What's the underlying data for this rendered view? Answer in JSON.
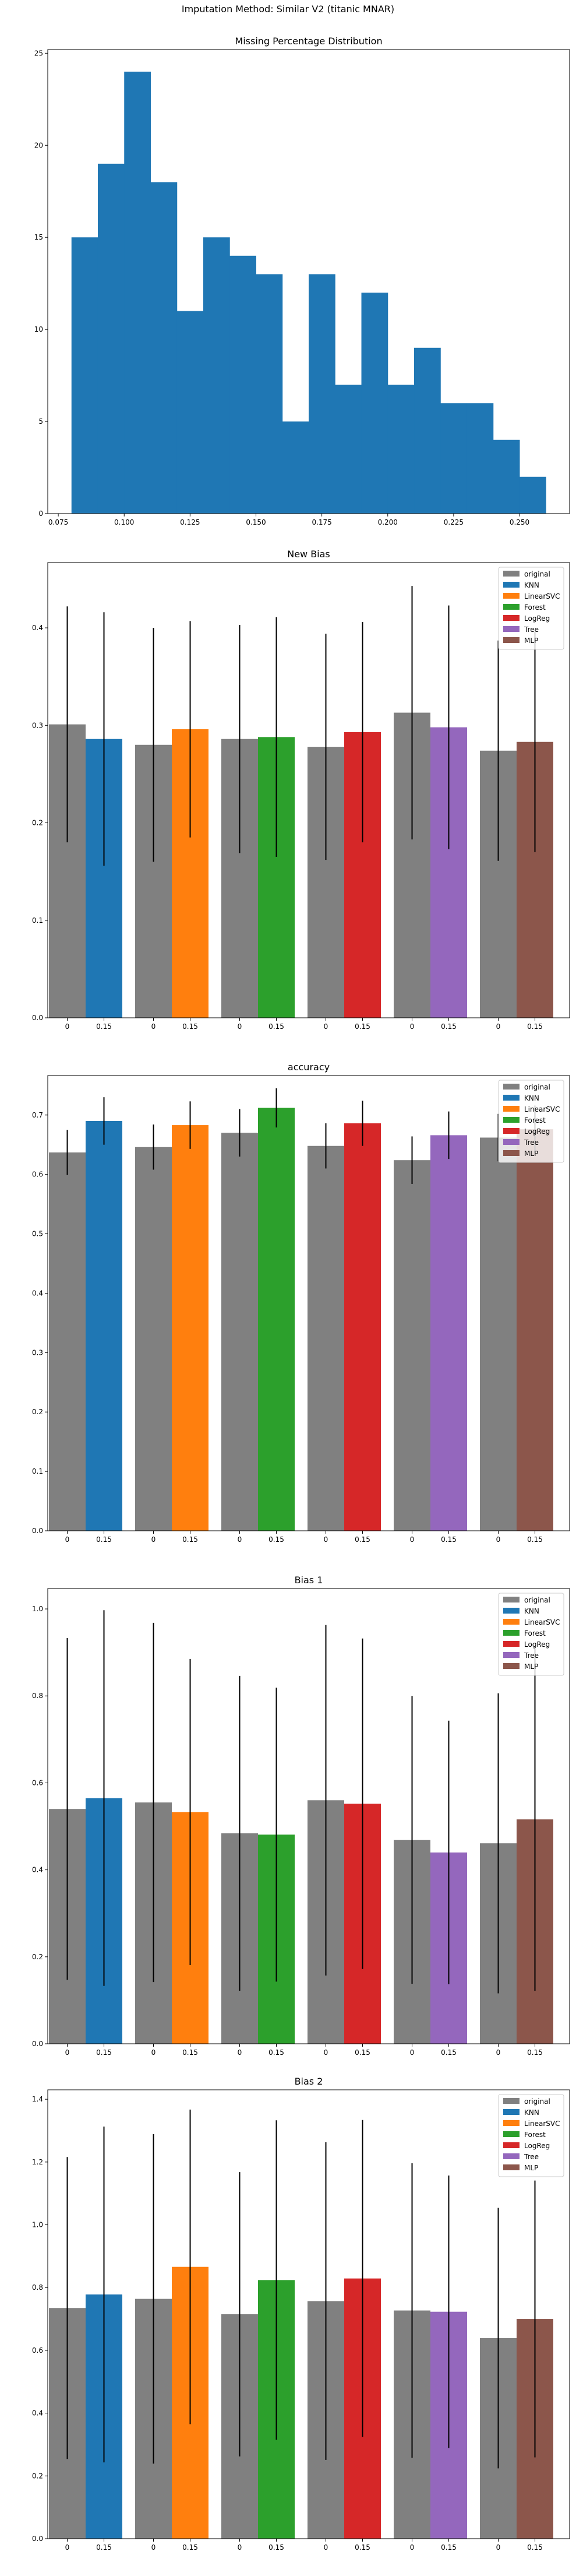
{
  "figure": {
    "suptitle": "Imputation Method: Similar V2 (titanic MNAR)"
  },
  "colors": {
    "original": "#808080",
    "KNN": "#1f77b4",
    "LinearSVC": "#ff7f0e",
    "Forest": "#2ca02c",
    "LogReg": "#d62728",
    "Tree": "#9467bd",
    "MLP": "#8c564b",
    "hist": "#1f77b4",
    "errorbar": "#000000"
  },
  "chart_data": [
    {
      "type": "bar",
      "subtype": "histogram",
      "title": "Missing Percentage Distribution",
      "xlabel": "",
      "ylabel": "",
      "bin_edges": [
        0.08,
        0.09,
        0.1,
        0.11,
        0.12,
        0.13,
        0.14,
        0.15,
        0.16,
        0.17,
        0.18,
        0.19,
        0.2,
        0.21,
        0.22,
        0.23,
        0.24,
        0.25,
        0.26
      ],
      "counts": [
        15,
        19,
        24,
        18,
        11,
        15,
        14,
        13,
        5,
        13,
        7,
        12,
        7,
        9,
        6,
        6,
        4,
        2
      ],
      "xlim": [
        0.071,
        0.269
      ],
      "ylim": [
        0,
        25.2
      ],
      "xticks": [
        0.075,
        0.1,
        0.125,
        0.15,
        0.175,
        0.2,
        0.225,
        0.25
      ],
      "xtick_labels": [
        "0.075",
        "0.100",
        "0.125",
        "0.150",
        "0.175",
        "0.200",
        "0.225",
        "0.250"
      ],
      "yticks": [
        0,
        5,
        10,
        15,
        20,
        25
      ],
      "ytick_labels": [
        "0",
        "5",
        "10",
        "15",
        "20",
        "25"
      ]
    },
    {
      "type": "bar",
      "title": "New Bias",
      "xlabel": "",
      "ylabel": "",
      "tick_labels": [
        "0",
        "0.15"
      ],
      "groups": [
        {
          "original": 0.301,
          "original_err": 0.121,
          "method": "KNN",
          "value": 0.286,
          "err": 0.13
        },
        {
          "original": 0.28,
          "original_err": 0.12,
          "method": "LinearSVC",
          "value": 0.296,
          "err": 0.111
        },
        {
          "original": 0.286,
          "original_err": 0.117,
          "method": "Forest",
          "value": 0.288,
          "err": 0.123
        },
        {
          "original": 0.278,
          "original_err": 0.116,
          "method": "LogReg",
          "value": 0.293,
          "err": 0.113
        },
        {
          "original": 0.313,
          "original_err": 0.13,
          "method": "Tree",
          "value": 0.298,
          "err": 0.125
        },
        {
          "original": 0.274,
          "original_err": 0.113,
          "method": "MLP",
          "value": 0.283,
          "err": 0.113
        }
      ],
      "ylim": [
        0,
        0.467
      ],
      "yticks": [
        0,
        0.1,
        0.2,
        0.3,
        0.4
      ],
      "ytick_labels": [
        "0.0",
        "0.1",
        "0.2",
        "0.3",
        "0.4"
      ],
      "legend": [
        "original",
        "KNN",
        "LinearSVC",
        "Forest",
        "LogReg",
        "Tree",
        "MLP"
      ],
      "legend_position": "top-right"
    },
    {
      "type": "bar",
      "title": "accuracy",
      "xlabel": "",
      "ylabel": "",
      "tick_labels": [
        "0",
        "0.15"
      ],
      "groups": [
        {
          "original": 0.637,
          "original_err": 0.038,
          "method": "KNN",
          "value": 0.69,
          "err": 0.04
        },
        {
          "original": 0.646,
          "original_err": 0.038,
          "method": "LinearSVC",
          "value": 0.683,
          "err": 0.04
        },
        {
          "original": 0.67,
          "original_err": 0.04,
          "method": "Forest",
          "value": 0.712,
          "err": 0.033
        },
        {
          "original": 0.648,
          "original_err": 0.038,
          "method": "LogReg",
          "value": 0.686,
          "err": 0.038
        },
        {
          "original": 0.624,
          "original_err": 0.04,
          "method": "Tree",
          "value": 0.666,
          "err": 0.04
        },
        {
          "original": 0.662,
          "original_err": 0.04,
          "method": "MLP",
          "value": 0.676,
          "err": 0.04
        }
      ],
      "ylim": [
        0,
        0.7665
      ],
      "yticks": [
        0,
        0.1,
        0.2,
        0.3,
        0.4,
        0.5,
        0.6,
        0.7
      ],
      "ytick_labels": [
        "0.0",
        "0.1",
        "0.2",
        "0.3",
        "0.4",
        "0.5",
        "0.6",
        "0.7"
      ],
      "legend": [
        "original",
        "KNN",
        "LinearSVC",
        "Forest",
        "LogReg",
        "Tree",
        "MLP"
      ],
      "legend_position": "top-right"
    },
    {
      "type": "bar",
      "title": "Bias 1",
      "xlabel": "",
      "ylabel": "",
      "tick_labels": [
        "0",
        "0.15"
      ],
      "groups": [
        {
          "original": 0.54,
          "original_err": 0.393,
          "method": "KNN",
          "value": 0.565,
          "err": 0.432
        },
        {
          "original": 0.555,
          "original_err": 0.413,
          "method": "LinearSVC",
          "value": 0.533,
          "err": 0.352
        },
        {
          "original": 0.484,
          "original_err": 0.362,
          "method": "Forest",
          "value": 0.481,
          "err": 0.338
        },
        {
          "original": 0.56,
          "original_err": 0.403,
          "method": "LogReg",
          "value": 0.552,
          "err": 0.38
        },
        {
          "original": 0.469,
          "original_err": 0.331,
          "method": "Tree",
          "value": 0.44,
          "err": 0.303
        },
        {
          "original": 0.461,
          "original_err": 0.345,
          "method": "MLP",
          "value": 0.516,
          "err": 0.394
        }
      ],
      "ylim": [
        0,
        1.047
      ],
      "yticks": [
        0,
        0.2,
        0.4,
        0.6,
        0.8,
        1.0
      ],
      "ytick_labels": [
        "0.0",
        "0.2",
        "0.4",
        "0.6",
        "0.8",
        "1.0"
      ],
      "legend": [
        "original",
        "KNN",
        "LinearSVC",
        "Forest",
        "LogReg",
        "Tree",
        "MLP"
      ],
      "legend_position": "top-right"
    },
    {
      "type": "bar",
      "title": "Bias 2",
      "xlabel": "",
      "ylabel": "",
      "tick_labels": [
        "0",
        "0.15"
      ],
      "groups": [
        {
          "original": 0.735,
          "original_err": 0.481,
          "method": "KNN",
          "value": 0.778,
          "err": 0.535
        },
        {
          "original": 0.764,
          "original_err": 0.525,
          "method": "LinearSVC",
          "value": 0.866,
          "err": 0.501
        },
        {
          "original": 0.715,
          "original_err": 0.453,
          "method": "Forest",
          "value": 0.824,
          "err": 0.509
        },
        {
          "original": 0.757,
          "original_err": 0.506,
          "method": "LogReg",
          "value": 0.829,
          "err": 0.505
        },
        {
          "original": 0.727,
          "original_err": 0.469,
          "method": "Tree",
          "value": 0.723,
          "err": 0.434
        },
        {
          "original": 0.639,
          "original_err": 0.415,
          "method": "MLP",
          "value": 0.7,
          "err": 0.441
        }
      ],
      "ylim": [
        0,
        1.43
      ],
      "yticks": [
        0,
        0.2,
        0.4,
        0.6,
        0.8,
        1.0,
        1.2,
        1.4
      ],
      "ytick_labels": [
        "0.0",
        "0.2",
        "0.4",
        "0.6",
        "0.8",
        "1.0",
        "1.2",
        "1.4"
      ],
      "legend": [
        "original",
        "KNN",
        "LinearSVC",
        "Forest",
        "LogReg",
        "Tree",
        "MLP"
      ],
      "legend_position": "top-right"
    }
  ]
}
